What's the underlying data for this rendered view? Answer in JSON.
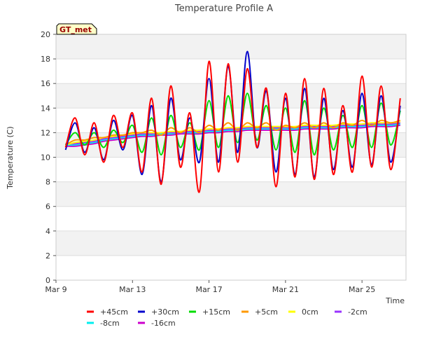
{
  "chart_data": {
    "type": "line",
    "title": "Temperature Profile A",
    "xlabel": "Time",
    "ylabel": "Temperature (C)",
    "ylim": [
      0,
      20
    ],
    "xlim_days": [
      9.0,
      27.3
    ],
    "x_ticks": [
      {
        "label": "Mar 9",
        "day": 9
      },
      {
        "label": "Mar 13",
        "day": 13
      },
      {
        "label": "Mar 17",
        "day": 17
      },
      {
        "label": "Mar 21",
        "day": 21
      },
      {
        "label": "Mar 25",
        "day": 25
      }
    ],
    "y_ticks": [
      0,
      2,
      4,
      6,
      8,
      10,
      12,
      14,
      16,
      18,
      20
    ],
    "grid": "horizontal bands",
    "legend_position": "bottom-center",
    "station_label": "GT_met",
    "x_days": [
      9.5,
      10,
      10.5,
      11,
      11.5,
      12,
      12.5,
      13,
      13.5,
      14,
      14.5,
      15,
      15.5,
      16,
      16.5,
      17,
      17.5,
      18,
      18.5,
      19,
      19.5,
      20,
      20.5,
      21,
      21.5,
      22,
      22.5,
      23,
      23.5,
      24,
      24.5,
      25,
      25.5,
      26,
      26.5,
      27
    ],
    "series": [
      {
        "name": "+45cm",
        "color": "#ff0000",
        "values": [
          10.8,
          13.2,
          10.2,
          12.8,
          9.6,
          13.4,
          10.8,
          13.6,
          8.8,
          14.8,
          7.8,
          15.8,
          9.2,
          13.6,
          7.2,
          17.8,
          8.8,
          17.6,
          9.6,
          17.2,
          10.8,
          15.6,
          7.6,
          15.2,
          8.4,
          16.4,
          8.2,
          15.6,
          8.6,
          14.2,
          8.8,
          16.6,
          9.2,
          15.8,
          9.0,
          14.8
        ]
      },
      {
        "name": "+30cm",
        "color": "#0000cc",
        "values": [
          10.6,
          12.8,
          10.4,
          12.4,
          9.8,
          13.0,
          10.6,
          13.4,
          8.6,
          14.2,
          8.0,
          14.8,
          9.8,
          13.2,
          9.6,
          16.4,
          9.6,
          17.4,
          10.4,
          18.6,
          10.8,
          15.4,
          8.8,
          14.8,
          8.6,
          15.6,
          8.4,
          14.8,
          9.0,
          13.8,
          9.2,
          15.2,
          9.4,
          15.0,
          9.6,
          14.2
        ]
      },
      {
        "name": "+15cm",
        "color": "#00dd00",
        "values": [
          11.0,
          12.0,
          11.0,
          12.0,
          10.8,
          12.2,
          11.2,
          12.6,
          10.4,
          13.2,
          10.2,
          13.4,
          10.8,
          12.8,
          10.6,
          14.6,
          10.8,
          15.0,
          11.2,
          15.2,
          11.4,
          14.2,
          10.6,
          14.0,
          10.4,
          14.6,
          10.2,
          14.0,
          10.6,
          13.4,
          10.8,
          14.2,
          10.8,
          14.4,
          11.0,
          13.8
        ]
      },
      {
        "name": "+5cm",
        "color": "#ff9900",
        "values": [
          11.0,
          11.4,
          11.4,
          11.6,
          11.6,
          11.8,
          11.8,
          12.0,
          12.0,
          12.2,
          11.8,
          12.4,
          12.0,
          12.4,
          12.0,
          12.6,
          12.2,
          12.8,
          12.2,
          12.8,
          12.4,
          12.8,
          12.2,
          12.6,
          12.4,
          12.8,
          12.4,
          12.8,
          12.4,
          12.8,
          12.6,
          13.0,
          12.6,
          13.0,
          12.8,
          13.0
        ]
      },
      {
        "name": "0cm",
        "color": "#ffff00",
        "values": [
          11.0,
          11.2,
          11.3,
          11.4,
          11.6,
          11.7,
          11.8,
          11.9,
          12.0,
          12.0,
          12.0,
          12.1,
          12.1,
          12.2,
          12.2,
          12.3,
          12.3,
          12.4,
          12.4,
          12.5,
          12.5,
          12.5,
          12.5,
          12.5,
          12.5,
          12.6,
          12.6,
          12.6,
          12.6,
          12.7,
          12.7,
          12.7,
          12.8,
          12.8,
          12.8,
          12.9
        ]
      },
      {
        "name": "-2cm",
        "color": "#9933ff",
        "values": [
          11.1,
          11.1,
          11.2,
          11.3,
          11.5,
          11.6,
          11.7,
          11.8,
          11.9,
          11.9,
          12.0,
          12.0,
          12.0,
          12.1,
          12.1,
          12.2,
          12.2,
          12.3,
          12.3,
          12.4,
          12.4,
          12.4,
          12.4,
          12.4,
          12.4,
          12.5,
          12.5,
          12.5,
          12.5,
          12.6,
          12.6,
          12.6,
          12.7,
          12.7,
          12.7,
          12.8
        ]
      },
      {
        "name": "-8cm",
        "color": "#00eeee",
        "values": [
          11.0,
          11.0,
          11.1,
          11.2,
          11.4,
          11.5,
          11.6,
          11.7,
          11.8,
          11.8,
          11.9,
          11.9,
          12.0,
          12.0,
          12.0,
          12.1,
          12.1,
          12.2,
          12.2,
          12.3,
          12.3,
          12.3,
          12.3,
          12.3,
          12.3,
          12.4,
          12.4,
          12.4,
          12.4,
          12.5,
          12.5,
          12.5,
          12.6,
          12.6,
          12.6,
          12.7
        ]
      },
      {
        "name": "-16cm",
        "color": "#cc00cc",
        "values": [
          10.9,
          10.9,
          11.0,
          11.1,
          11.3,
          11.4,
          11.5,
          11.6,
          11.7,
          11.7,
          11.8,
          11.8,
          11.9,
          11.9,
          11.9,
          12.0,
          12.0,
          12.1,
          12.1,
          12.2,
          12.2,
          12.2,
          12.2,
          12.2,
          12.2,
          12.3,
          12.3,
          12.3,
          12.3,
          12.4,
          12.4,
          12.4,
          12.5,
          12.5,
          12.5,
          12.6
        ]
      }
    ]
  }
}
